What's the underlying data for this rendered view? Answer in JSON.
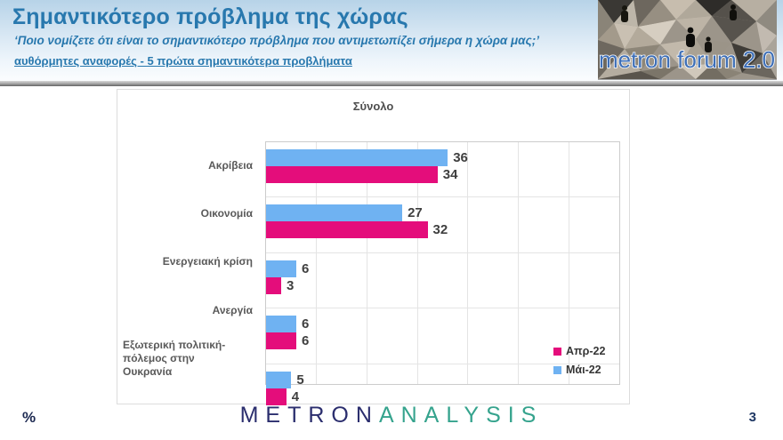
{
  "header": {
    "title": "Σημαντικότερο πρόβλημα της χώρας",
    "subtitle": "‘Ποιο νομίζετε ότι  είναι το σημαντικότερο πρόβλημα που αντιμετωπίζει σήμερα η χώρα μας;’",
    "note": "αυθόρμητες αναφορές - 5 πρώτα σημαντικότερα προβλήματα",
    "logo_text": "metron forum 2.0"
  },
  "chart_data": {
    "type": "bar",
    "orientation": "horizontal",
    "title": "Σύνολο",
    "categories": [
      "Ακρίβεια",
      "Οικονομία",
      "Ενεργειακή κρίση",
      "Ανεργία",
      "Εξωτερική πολιτική-πόλεμος στην\nΟυκρανία"
    ],
    "series": [
      {
        "name": "Μάι-22",
        "color": "#6fb2f2",
        "values": [
          36,
          27,
          6,
          6,
          5
        ]
      },
      {
        "name": "Απρ-22",
        "color": "#e40d7b",
        "values": [
          34,
          32,
          3,
          6,
          4
        ]
      }
    ],
    "xlim": [
      0,
      70
    ],
    "grid_interval": 10,
    "grid": "vertical",
    "legend_position": "inside-bottom-right",
    "legend": [
      {
        "label": "Απρ-22",
        "color": "#e40d7b"
      },
      {
        "label": "Μάι-22",
        "color": "#6fb2f2"
      }
    ]
  },
  "footer": {
    "unit_label": "%",
    "brand_primary": "METRON",
    "brand_secondary": "ANALYSIS",
    "page_number": "3"
  }
}
